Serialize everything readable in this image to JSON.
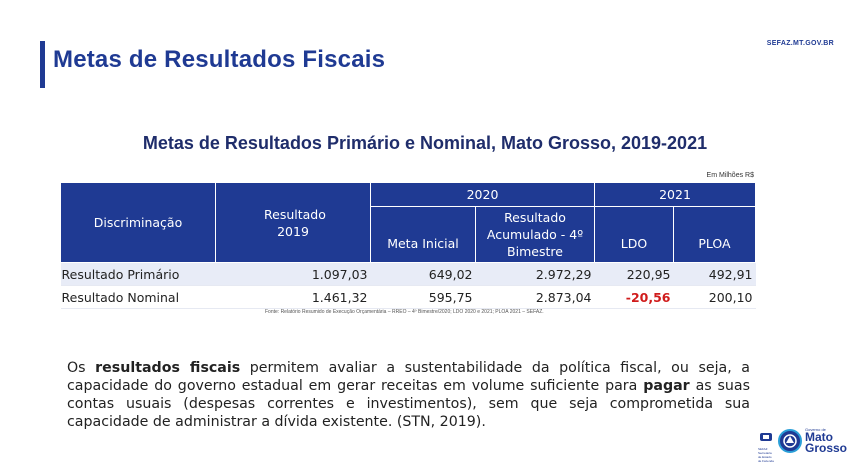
{
  "header": {
    "title": "Metas de Resultados  Fiscais",
    "site": "SEFAZ.MT.GOV.BR"
  },
  "subtitle": "Metas de Resultados Primário e Nominal, Mato Grosso, 2019-2021",
  "unit_note": "Em Milhões R$",
  "table": {
    "col_discriminacao": "Discriminação",
    "col_resultado_2019": "Resultado 2019",
    "group_2020": "2020",
    "group_2021": "2021",
    "col_meta_inicial": "Meta Inicial",
    "col_resultado_acumulado": "Resultado Acumulado - 4º Bimestre",
    "col_ldo": "LDO",
    "col_ploa": "PLOA",
    "rows": [
      {
        "label": "Resultado Primário",
        "r2019": "1.097,03",
        "meta": "649,02",
        "acum": "2.972,29",
        "ldo": "220,95",
        "ploa": "492,91"
      },
      {
        "label": "Resultado Nominal",
        "r2019": "1.461,32",
        "meta": "595,75",
        "acum": "2.873,04",
        "ldo": "-20,56",
        "ploa": "200,10"
      }
    ]
  },
  "source": "Fonte: Relatório Resumido de Execução Orçamentária – RREO – 4º Bimestre/2020;  LDO 2020 e 2021; PLOA 2021 – SEFAZ.",
  "paragraph": {
    "p1": "Os ",
    "b1": "resultados fiscais",
    "p2": " permitem avaliar a sustentabilidade da política fiscal, ou seja, a capacidade do governo estadual em gerar receitas em volume suficiente para ",
    "b2": "pagar",
    "p3": " as suas contas usuais (despesas correntes e investimentos), sem que seja comprometida sua capacidade de administrar a dívida existente. (STN, 2019)."
  },
  "footer": {
    "small_logo_text": "SEFAZ Secretaria de Estado de Fazenda",
    "gov_label": "Governo de",
    "state_line1": "Mato",
    "state_line2": "Grosso"
  },
  "colors": {
    "brand_blue": "#1f3a93",
    "negative_red": "#d01c1c",
    "row_stripe": "#e8ecf7"
  }
}
